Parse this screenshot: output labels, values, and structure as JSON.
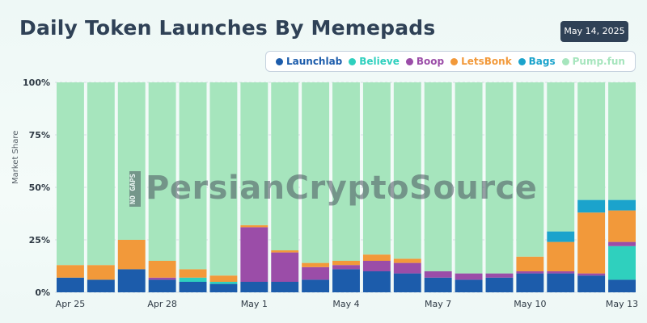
{
  "header": {
    "title": "Daily Token Launches By Memepads",
    "date_badge": "May 14, 2025"
  },
  "watermark": {
    "text": "PersianCryptoSource",
    "small_text": "NO GAPS"
  },
  "colors": {
    "Launchlab": "#1c5cab",
    "Believe": "#2fd0be",
    "Boop": "#9b4da8",
    "LetsBonk": "#f2993a",
    "Bags": "#1ba3cc",
    "Pump.fun": "#a6e5bd"
  },
  "chart_data": {
    "type": "bar",
    "stacked": true,
    "title": "Daily Token Launches By Memepads",
    "ylabel": "Market Share",
    "ylim": [
      0,
      100
    ],
    "yticks": [
      "0%",
      "25%",
      "50%",
      "75%",
      "100%"
    ],
    "xtick_labels": [
      "Apr 25",
      "Apr 28",
      "May 1",
      "May 4",
      "May 7",
      "May 10",
      "May 13"
    ],
    "legend_position": "top-right",
    "categories": [
      "Apr 25",
      "Apr 26",
      "Apr 27",
      "Apr 28",
      "Apr 29",
      "Apr 30",
      "May 1",
      "May 2",
      "May 3",
      "May 4",
      "May 5",
      "May 6",
      "May 7",
      "May 8",
      "May 9",
      "May 10",
      "May 11",
      "May 12",
      "May 13"
    ],
    "series": [
      {
        "name": "Launchlab",
        "values": [
          7,
          6,
          11,
          6,
          5,
          4,
          5,
          5,
          6,
          11,
          10,
          9,
          7,
          6,
          7,
          9,
          9,
          8,
          6
        ]
      },
      {
        "name": "Believe",
        "values": [
          0,
          0,
          0,
          0,
          2,
          1,
          0,
          0,
          0,
          0,
          0,
          0,
          0,
          0,
          0,
          0,
          0,
          0,
          16
        ]
      },
      {
        "name": "Boop",
        "values": [
          0,
          0,
          0,
          1,
          0,
          0,
          26,
          14,
          6,
          2,
          5,
          5,
          3,
          3,
          2,
          1,
          1,
          1,
          2
        ]
      },
      {
        "name": "LetsBonk",
        "values": [
          6,
          7,
          14,
          8,
          4,
          3,
          1,
          1,
          2,
          2,
          3,
          2,
          0,
          0,
          0,
          7,
          14,
          29,
          15
        ]
      },
      {
        "name": "Bags",
        "values": [
          0,
          0,
          0,
          0,
          0,
          0,
          0,
          0,
          0,
          0,
          0,
          0,
          0,
          0,
          0,
          0,
          5,
          6,
          5
        ]
      },
      {
        "name": "Pump.fun",
        "values": [
          87,
          87,
          75,
          85,
          89,
          92,
          68,
          80,
          86,
          85,
          82,
          84,
          90,
          91,
          91,
          83,
          71,
          56,
          56
        ]
      }
    ]
  }
}
